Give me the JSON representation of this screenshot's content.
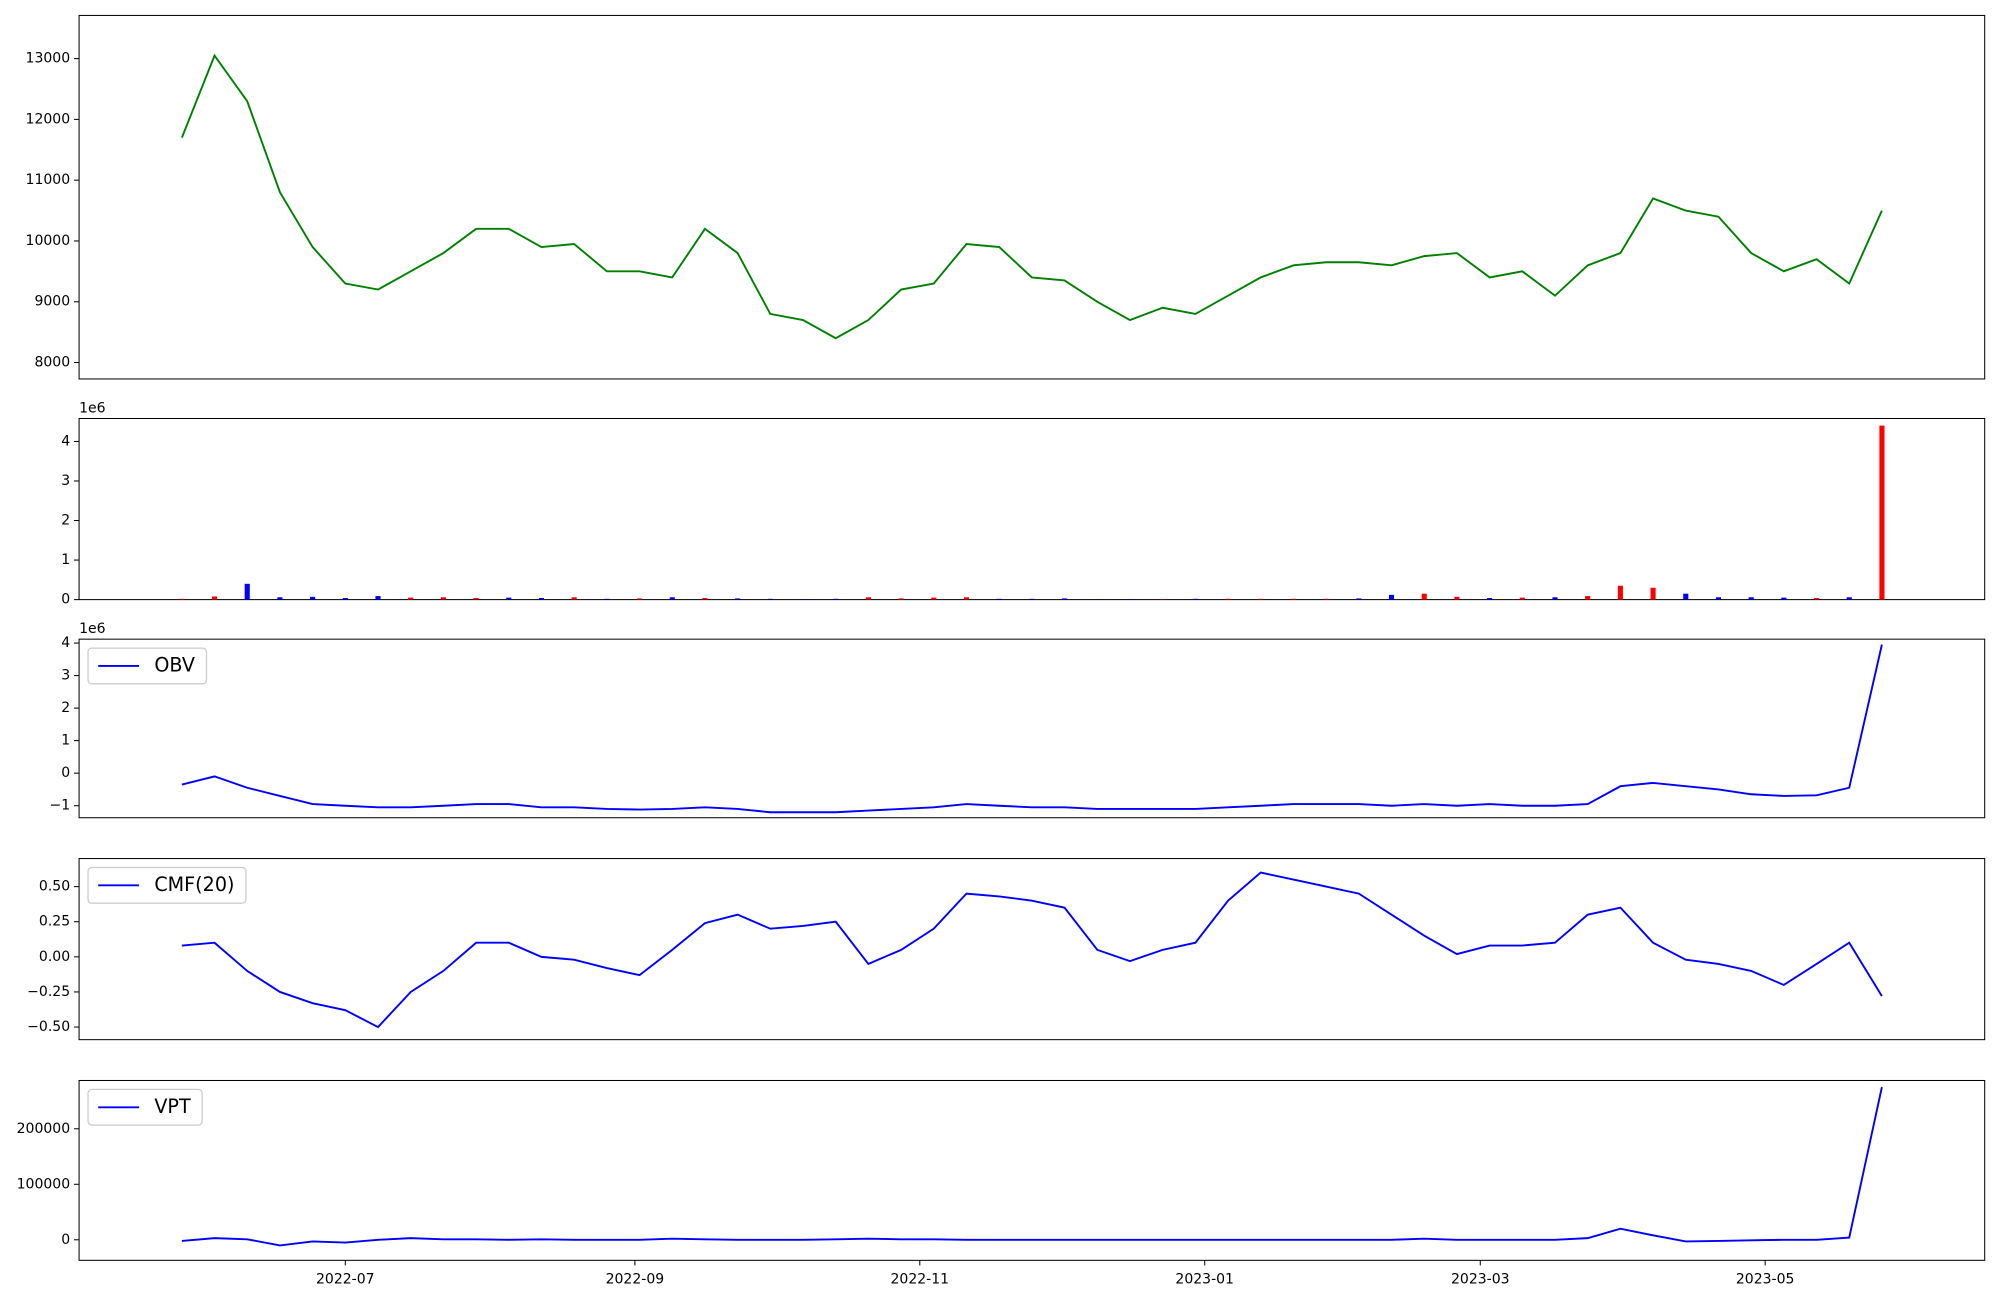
{
  "chart_data": [
    {
      "type": "line",
      "color": "green",
      "x": [
        "2022-05-27",
        "2022-06-03",
        "2022-06-10",
        "2022-06-17",
        "2022-06-24",
        "2022-07-01",
        "2022-07-08",
        "2022-07-15",
        "2022-07-22",
        "2022-07-29",
        "2022-08-05",
        "2022-08-12",
        "2022-08-19",
        "2022-08-26",
        "2022-09-02",
        "2022-09-09",
        "2022-09-16",
        "2022-09-23",
        "2022-09-30",
        "2022-10-07",
        "2022-10-14",
        "2022-10-21",
        "2022-10-28",
        "2022-11-04",
        "2022-11-11",
        "2022-11-18",
        "2022-11-25",
        "2022-12-02",
        "2022-12-09",
        "2022-12-16",
        "2022-12-23",
        "2022-12-30",
        "2023-01-06",
        "2023-01-13",
        "2023-01-20",
        "2023-01-27",
        "2023-02-03",
        "2023-02-10",
        "2023-02-17",
        "2023-02-24",
        "2023-03-03",
        "2023-03-10",
        "2023-03-17",
        "2023-03-24",
        "2023-03-31",
        "2023-04-07",
        "2023-04-14",
        "2023-04-21",
        "2023-04-28",
        "2023-05-05",
        "2023-05-12",
        "2023-05-19",
        "2023-05-26"
      ],
      "values": [
        11700,
        13050,
        12300,
        10800,
        9900,
        9300,
        9200,
        9500,
        9800,
        10200,
        10200,
        9900,
        9950,
        9500,
        9500,
        9400,
        10200,
        9800,
        8800,
        8700,
        8400,
        8700,
        9200,
        9300,
        9950,
        9900,
        9400,
        9350,
        9000,
        8700,
        8900,
        8800,
        9100,
        9400,
        9600,
        9650,
        9650,
        9600,
        9750,
        9800,
        9400,
        9500,
        9100,
        9600,
        9800,
        10700,
        10500,
        10400,
        9800,
        9500,
        9700,
        9300,
        10500
      ],
      "xlim": [
        "2022-05-05",
        "2023-06-17"
      ],
      "ylim": [
        7730,
        13710
      ],
      "yticks": [
        8000,
        9000,
        10000,
        11000,
        12000,
        13000
      ]
    },
    {
      "type": "bar",
      "y_offset_label": "1e6",
      "x": [
        "2022-05-27",
        "2022-06-03",
        "2022-06-10",
        "2022-06-17",
        "2022-06-24",
        "2022-07-01",
        "2022-07-08",
        "2022-07-15",
        "2022-07-22",
        "2022-07-29",
        "2022-08-05",
        "2022-08-12",
        "2022-08-19",
        "2022-08-26",
        "2022-09-02",
        "2022-09-09",
        "2022-09-16",
        "2022-09-23",
        "2022-09-30",
        "2022-10-07",
        "2022-10-14",
        "2022-10-21",
        "2022-10-28",
        "2022-11-04",
        "2022-11-11",
        "2022-11-18",
        "2022-11-25",
        "2022-12-02",
        "2022-12-09",
        "2022-12-16",
        "2022-12-23",
        "2022-12-30",
        "2023-01-06",
        "2023-01-13",
        "2023-01-20",
        "2023-01-27",
        "2023-02-03",
        "2023-02-10",
        "2023-02-17",
        "2023-02-24",
        "2023-03-03",
        "2023-03-10",
        "2023-03-17",
        "2023-03-24",
        "2023-03-31",
        "2023-04-07",
        "2023-04-14",
        "2023-04-21",
        "2023-04-28",
        "2023-05-05",
        "2023-05-12",
        "2023-05-19",
        "2023-05-26"
      ],
      "values": [
        20000,
        80000,
        400000,
        60000,
        70000,
        40000,
        90000,
        50000,
        60000,
        40000,
        50000,
        40000,
        60000,
        20000,
        30000,
        60000,
        40000,
        30000,
        20000,
        10000,
        20000,
        60000,
        30000,
        50000,
        60000,
        20000,
        20000,
        30000,
        10000,
        10000,
        10000,
        20000,
        20000,
        20000,
        20000,
        20000,
        30000,
        120000,
        150000,
        70000,
        40000,
        50000,
        60000,
        90000,
        350000,
        300000,
        150000,
        60000,
        60000,
        50000,
        40000,
        60000,
        4400000
      ],
      "colors": [
        "red",
        "red",
        "blue",
        "blue",
        "blue",
        "blue",
        "blue",
        "red",
        "red",
        "red",
        "blue",
        "blue",
        "red",
        "blue",
        "red",
        "blue",
        "red",
        "blue",
        "blue",
        "blue",
        "blue",
        "red",
        "red",
        "red",
        "red",
        "blue",
        "blue",
        "blue",
        "blue",
        "blue",
        "red",
        "blue",
        "red",
        "red",
        "red",
        "red",
        "blue",
        "blue",
        "red",
        "red",
        "blue",
        "red",
        "blue",
        "red",
        "red",
        "red",
        "blue",
        "blue",
        "blue",
        "blue",
        "red",
        "blue",
        "red"
      ],
      "xlim": [
        "2022-05-05",
        "2023-06-17"
      ],
      "ylim": [
        0,
        4580000
      ],
      "yticks": [
        0,
        {
          "value": 1000000,
          "label": "1"
        },
        {
          "value": 2000000,
          "label": "2"
        },
        {
          "value": 3000000,
          "label": "3"
        },
        {
          "value": 4000000,
          "label": "4"
        }
      ]
    },
    {
      "type": "line",
      "y_offset_label": "1e6",
      "legend": "upper left",
      "x": [
        "2022-05-27",
        "2022-06-03",
        "2022-06-10",
        "2022-06-17",
        "2022-06-24",
        "2022-07-01",
        "2022-07-08",
        "2022-07-15",
        "2022-07-22",
        "2022-07-29",
        "2022-08-05",
        "2022-08-12",
        "2022-08-19",
        "2022-08-26",
        "2022-09-02",
        "2022-09-09",
        "2022-09-16",
        "2022-09-23",
        "2022-09-30",
        "2022-10-07",
        "2022-10-14",
        "2022-10-21",
        "2022-10-28",
        "2022-11-04",
        "2022-11-11",
        "2022-11-18",
        "2022-11-25",
        "2022-12-02",
        "2022-12-09",
        "2022-12-16",
        "2022-12-23",
        "2022-12-30",
        "2023-01-06",
        "2023-01-13",
        "2023-01-20",
        "2023-01-27",
        "2023-02-03",
        "2023-02-10",
        "2023-02-17",
        "2023-02-24",
        "2023-03-03",
        "2023-03-10",
        "2023-03-17",
        "2023-03-24",
        "2023-03-31",
        "2023-04-07",
        "2023-04-14",
        "2023-04-21",
        "2023-04-28",
        "2023-05-05",
        "2023-05-12",
        "2023-05-19",
        "2023-05-26"
      ],
      "series": [
        {
          "name": "OBV",
          "color": "blue",
          "values": [
            -350000,
            -100000,
            -450000,
            -700000,
            -950000,
            -1000000,
            -1050000,
            -1050000,
            -1000000,
            -950000,
            -950000,
            -1050000,
            -1050000,
            -1100000,
            -1120000,
            -1100000,
            -1050000,
            -1100000,
            -1200000,
            -1200000,
            -1200000,
            -1150000,
            -1100000,
            -1050000,
            -950000,
            -1000000,
            -1050000,
            -1050000,
            -1100000,
            -1100000,
            -1100000,
            -1100000,
            -1050000,
            -1000000,
            -950000,
            -950000,
            -950000,
            -1000000,
            -950000,
            -1000000,
            -950000,
            -1000000,
            -1000000,
            -950000,
            -400000,
            -300000,
            -400000,
            -500000,
            -650000,
            -700000,
            -680000,
            -450000,
            3950000
          ]
        }
      ],
      "xlim": [
        "2022-05-05",
        "2023-06-17"
      ],
      "ylim": [
        -1370000,
        4120000
      ],
      "yticks": [
        {
          "value": -1000000,
          "label": "−1"
        },
        0,
        {
          "value": 1000000,
          "label": "1"
        },
        {
          "value": 2000000,
          "label": "2"
        },
        {
          "value": 3000000,
          "label": "3"
        },
        {
          "value": 4000000,
          "label": "4"
        }
      ]
    },
    {
      "type": "line",
      "legend": "upper left",
      "x": [
        "2022-05-27",
        "2022-06-03",
        "2022-06-10",
        "2022-06-17",
        "2022-06-24",
        "2022-07-01",
        "2022-07-08",
        "2022-07-15",
        "2022-07-22",
        "2022-07-29",
        "2022-08-05",
        "2022-08-12",
        "2022-08-19",
        "2022-08-26",
        "2022-09-02",
        "2022-09-09",
        "2022-09-16",
        "2022-09-23",
        "2022-09-30",
        "2022-10-07",
        "2022-10-14",
        "2022-10-21",
        "2022-10-28",
        "2022-11-04",
        "2022-11-11",
        "2022-11-18",
        "2022-11-25",
        "2022-12-02",
        "2022-12-09",
        "2022-12-16",
        "2022-12-23",
        "2022-12-30",
        "2023-01-06",
        "2023-01-13",
        "2023-01-20",
        "2023-01-27",
        "2023-02-03",
        "2023-02-10",
        "2023-02-17",
        "2023-02-24",
        "2023-03-03",
        "2023-03-10",
        "2023-03-17",
        "2023-03-24",
        "2023-03-31",
        "2023-04-07",
        "2023-04-14",
        "2023-04-21",
        "2023-04-28",
        "2023-05-05",
        "2023-05-12",
        "2023-05-19",
        "2023-05-26"
      ],
      "series": [
        {
          "name": "CMF(20)",
          "color": "blue",
          "values": [
            0.08,
            0.1,
            -0.1,
            -0.25,
            -0.33,
            -0.38,
            -0.5,
            -0.25,
            -0.1,
            0.1,
            0.1,
            0.0,
            -0.02,
            -0.08,
            -0.13,
            0.05,
            0.24,
            0.3,
            0.2,
            0.22,
            0.25,
            -0.05,
            0.05,
            0.2,
            0.45,
            0.43,
            0.4,
            0.35,
            0.05,
            -0.03,
            0.05,
            0.1,
            0.4,
            0.6,
            0.55,
            0.5,
            0.45,
            0.3,
            0.15,
            0.02,
            0.08,
            0.08,
            0.1,
            0.3,
            0.35,
            0.1,
            -0.02,
            -0.05,
            -0.1,
            -0.2,
            -0.05,
            0.1,
            -0.28
          ]
        }
      ],
      "xlim": [
        "2022-05-05",
        "2023-06-17"
      ],
      "ylim": [
        -0.59,
        0.7
      ],
      "yticks": [
        {
          "value": -0.5,
          "label": "−0.50"
        },
        {
          "value": -0.25,
          "label": "−0.25"
        },
        {
          "value": 0,
          "label": "0.00"
        },
        {
          "value": 0.25,
          "label": "0.25"
        },
        {
          "value": 0.5,
          "label": "0.50"
        }
      ]
    },
    {
      "type": "line",
      "legend": "upper left",
      "x": [
        "2022-05-27",
        "2022-06-03",
        "2022-06-10",
        "2022-06-17",
        "2022-06-24",
        "2022-07-01",
        "2022-07-08",
        "2022-07-15",
        "2022-07-22",
        "2022-07-29",
        "2022-08-05",
        "2022-08-12",
        "2022-08-19",
        "2022-08-26",
        "2022-09-02",
        "2022-09-09",
        "2022-09-16",
        "2022-09-23",
        "2022-09-30",
        "2022-10-07",
        "2022-10-14",
        "2022-10-21",
        "2022-10-28",
        "2022-11-04",
        "2022-11-11",
        "2022-11-18",
        "2022-11-25",
        "2022-12-02",
        "2022-12-09",
        "2022-12-16",
        "2022-12-23",
        "2022-12-30",
        "2023-01-06",
        "2023-01-13",
        "2023-01-20",
        "2023-01-27",
        "2023-02-03",
        "2023-02-10",
        "2023-02-17",
        "2023-02-24",
        "2023-03-03",
        "2023-03-10",
        "2023-03-17",
        "2023-03-24",
        "2023-03-31",
        "2023-04-07",
        "2023-04-14",
        "2023-04-21",
        "2023-04-28",
        "2023-05-05",
        "2023-05-12",
        "2023-05-19",
        "2023-05-26"
      ],
      "series": [
        {
          "name": "VPT",
          "color": "blue",
          "values": [
            -2000,
            3000,
            1000,
            -10000,
            -3000,
            -5000,
            0,
            3000,
            1000,
            1000,
            0,
            1000,
            0,
            0,
            0,
            2000,
            1000,
            0,
            0,
            0,
            1000,
            2000,
            1000,
            1000,
            0,
            0,
            0,
            0,
            0,
            0,
            0,
            0,
            0,
            0,
            0,
            0,
            0,
            0,
            2000,
            0,
            0,
            0,
            0,
            3000,
            20000,
            8000,
            -3000,
            -2000,
            -1000,
            0,
            0,
            4000,
            275000
          ]
        }
      ],
      "xlim": [
        "2022-05-05",
        "2023-06-17"
      ],
      "ylim": [
        -37000,
        287000
      ],
      "yticks": [
        0,
        100000,
        200000
      ],
      "xticks": [
        "2022-07",
        "2022-09",
        "2022-11",
        "2023-01",
        "2023-03",
        "2023-05"
      ]
    }
  ]
}
